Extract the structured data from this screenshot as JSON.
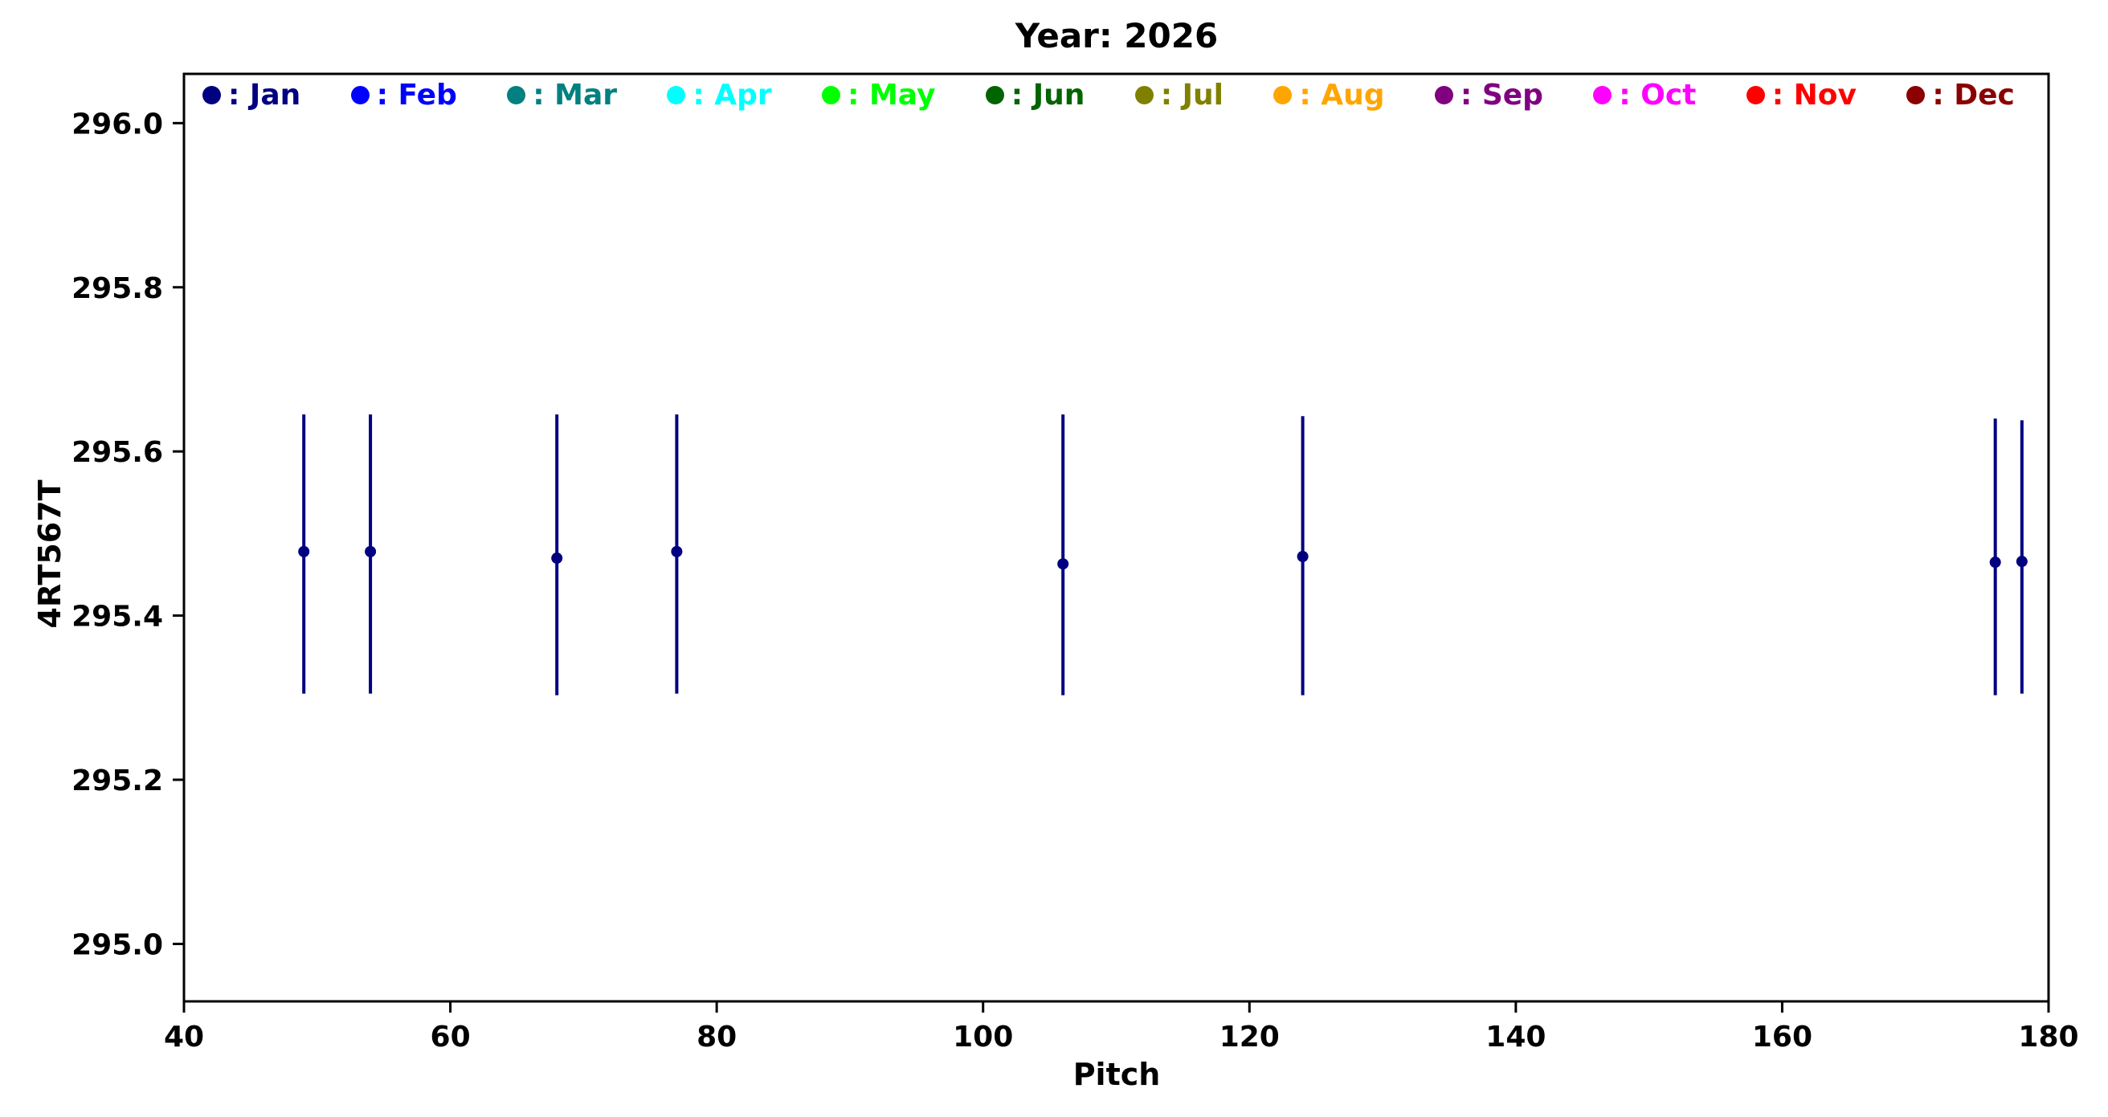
{
  "title": "Year: 2026",
  "chart_data": {
    "type": "scatter",
    "title": "Year: 2026",
    "xlabel": "Pitch",
    "ylabel": "4RT567T",
    "xlim": [
      40,
      180
    ],
    "ylim": [
      294.93,
      296.06
    ],
    "xticks": [
      40,
      60,
      80,
      100,
      120,
      140,
      160,
      180
    ],
    "yticks": [
      295.0,
      295.2,
      295.4,
      295.6,
      295.8,
      296.0
    ],
    "grid": false,
    "legend": {
      "position": "top-inside-horizontal",
      "entries": [
        {
          "month": "Jan",
          "label": ": Jan",
          "color": "#000080"
        },
        {
          "month": "Feb",
          "label": ": Feb",
          "color": "#0000FF"
        },
        {
          "month": "Mar",
          "label": ": Mar",
          "color": "#008080"
        },
        {
          "month": "Apr",
          "label": ": Apr",
          "color": "#00FFFF"
        },
        {
          "month": "May",
          "label": ": May",
          "color": "#00FF00"
        },
        {
          "month": "Jun",
          "label": ": Jun",
          "color": "#006400"
        },
        {
          "month": "Jul",
          "label": ": Jul",
          "color": "#808000"
        },
        {
          "month": "Aug",
          "label": ": Aug",
          "color": "#FFA500"
        },
        {
          "month": "Sep",
          "label": ": Sep",
          "color": "#800080"
        },
        {
          "month": "Oct",
          "label": ": Oct",
          "color": "#FF00FF"
        },
        {
          "month": "Nov",
          "label": ": Nov",
          "color": "#FF0000"
        },
        {
          "month": "Dec",
          "label": ": Dec",
          "color": "#8B0000"
        }
      ]
    },
    "series": [
      {
        "name": "Jan",
        "color": "#000080",
        "marker": "circle",
        "error_bars": true,
        "points": [
          {
            "x": 49,
            "y": 295.478,
            "err_low": 295.305,
            "err_high": 295.645
          },
          {
            "x": 54,
            "y": 295.478,
            "err_low": 295.305,
            "err_high": 295.645
          },
          {
            "x": 68,
            "y": 295.47,
            "err_low": 295.303,
            "err_high": 295.645
          },
          {
            "x": 77,
            "y": 295.478,
            "err_low": 295.305,
            "err_high": 295.645
          },
          {
            "x": 106,
            "y": 295.463,
            "err_low": 295.303,
            "err_high": 295.645
          },
          {
            "x": 124,
            "y": 295.472,
            "err_low": 295.303,
            "err_high": 295.643
          },
          {
            "x": 176,
            "y": 295.465,
            "err_low": 295.303,
            "err_high": 295.64
          },
          {
            "x": 178,
            "y": 295.466,
            "err_low": 295.305,
            "err_high": 295.638
          }
        ]
      }
    ]
  }
}
